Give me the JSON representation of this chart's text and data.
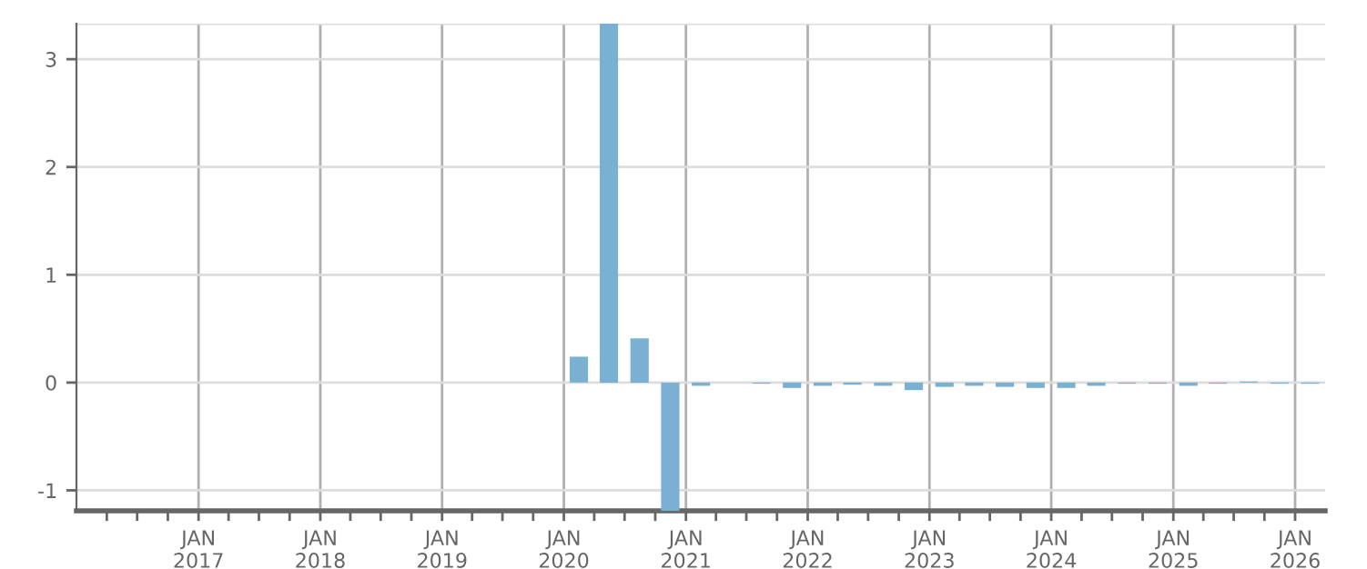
{
  "chart_data": {
    "type": "bar",
    "color": "#7ab1d3",
    "x": [
      "2020-02-15",
      "2020-05-15",
      "2020-08-15",
      "2020-11-15",
      "2021-02-15",
      "2021-05-15",
      "2021-08-15",
      "2021-11-15",
      "2022-02-15",
      "2022-05-15",
      "2022-08-15",
      "2022-11-15",
      "2023-02-15",
      "2023-05-15",
      "2023-08-15",
      "2023-11-15",
      "2024-02-15",
      "2024-05-15",
      "2024-08-15",
      "2024-11-15",
      "2025-02-15",
      "2025-05-15",
      "2025-08-15",
      "2025-11-15",
      "2026-02-15"
    ],
    "values": [
      0.24,
      3.33,
      0.41,
      -1.19,
      -0.03,
      0,
      -0.01,
      -0.05,
      -0.03,
      -0.02,
      -0.03,
      -0.07,
      -0.04,
      -0.03,
      -0.04,
      -0.05,
      -0.05,
      -0.03,
      -0.01,
      -0.01,
      -0.03,
      -0.01,
      0.01,
      -0.01,
      -0.01
    ],
    "xlim": [
      "2016-01-01",
      "2026-04-01"
    ],
    "xticks": [
      {
        "value": "2016-04-01",
        "label": null
      },
      {
        "value": "2016-07-01",
        "label": null
      },
      {
        "value": "2016-10-01",
        "label": null
      },
      {
        "value": "2017-01-01",
        "label": "JAN\n2017"
      },
      {
        "value": "2017-04-01",
        "label": null
      },
      {
        "value": "2017-07-01",
        "label": null
      },
      {
        "value": "2017-10-01",
        "label": null
      },
      {
        "value": "2018-01-01",
        "label": "JAN\n2018"
      },
      {
        "value": "2018-04-01",
        "label": null
      },
      {
        "value": "2018-07-01",
        "label": null
      },
      {
        "value": "2018-10-01",
        "label": null
      },
      {
        "value": "2019-01-01",
        "label": "JAN\n2019"
      },
      {
        "value": "2019-04-01",
        "label": null
      },
      {
        "value": "2019-07-01",
        "label": null
      },
      {
        "value": "2019-10-01",
        "label": null
      },
      {
        "value": "2020-01-01",
        "label": "JAN\n2020"
      },
      {
        "value": "2020-04-01",
        "label": null
      },
      {
        "value": "2020-07-01",
        "label": null
      },
      {
        "value": "2020-10-01",
        "label": null
      },
      {
        "value": "2021-01-01",
        "label": "JAN\n2021"
      },
      {
        "value": "2021-04-01",
        "label": null
      },
      {
        "value": "2021-07-01",
        "label": null
      },
      {
        "value": "2021-10-01",
        "label": null
      },
      {
        "value": "2022-01-01",
        "label": "JAN\n2022"
      },
      {
        "value": "2022-04-01",
        "label": null
      },
      {
        "value": "2022-07-01",
        "label": null
      },
      {
        "value": "2022-10-01",
        "label": null
      },
      {
        "value": "2023-01-01",
        "label": "JAN\n2023"
      },
      {
        "value": "2023-04-01",
        "label": null
      },
      {
        "value": "2023-07-01",
        "label": null
      },
      {
        "value": "2023-10-01",
        "label": null
      },
      {
        "value": "2024-01-01",
        "label": "JAN\n2024"
      },
      {
        "value": "2024-04-01",
        "label": null
      },
      {
        "value": "2024-07-01",
        "label": null
      },
      {
        "value": "2024-10-01",
        "label": null
      },
      {
        "value": "2025-01-01",
        "label": "JAN\n2025"
      },
      {
        "value": "2025-04-01",
        "label": null
      },
      {
        "value": "2025-07-01",
        "label": null
      },
      {
        "value": "2025-10-01",
        "label": null
      },
      {
        "value": "2026-01-01",
        "label": "JAN\n2026"
      }
    ],
    "ylim": [
      -1.19,
      3.33
    ],
    "yticks": [
      -1,
      0,
      1,
      2,
      3
    ],
    "grid": true
  }
}
